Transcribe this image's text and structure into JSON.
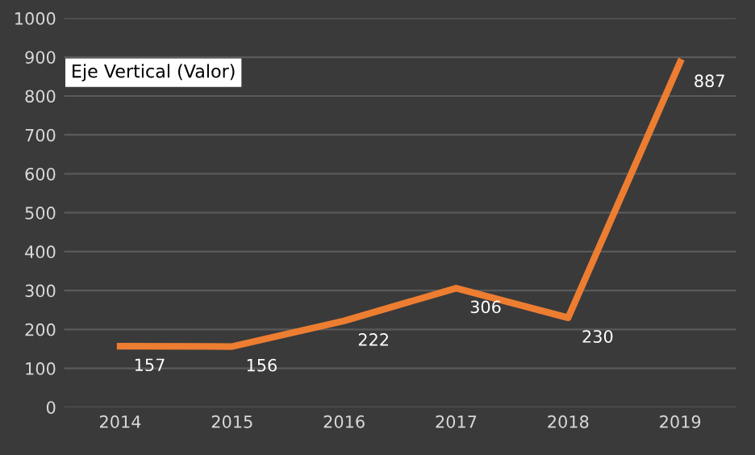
{
  "chart_data": {
    "type": "line",
    "ylabel": "Eje Vertical (Valor)",
    "categories": [
      "2014",
      "2015",
      "2016",
      "2017",
      "2018",
      "2019"
    ],
    "series": [
      {
        "color": "#ed7d31",
        "values": [
          157,
          156,
          222,
          306,
          230,
          887
        ]
      }
    ],
    "ylim": [
      0,
      1000
    ],
    "yticks": [
      0,
      100,
      200,
      300,
      400,
      500,
      600,
      700,
      800,
      900,
      1000
    ],
    "grid": "y",
    "data_labels": true,
    "marker": "none",
    "line_style": "solid",
    "legend": false
  }
}
